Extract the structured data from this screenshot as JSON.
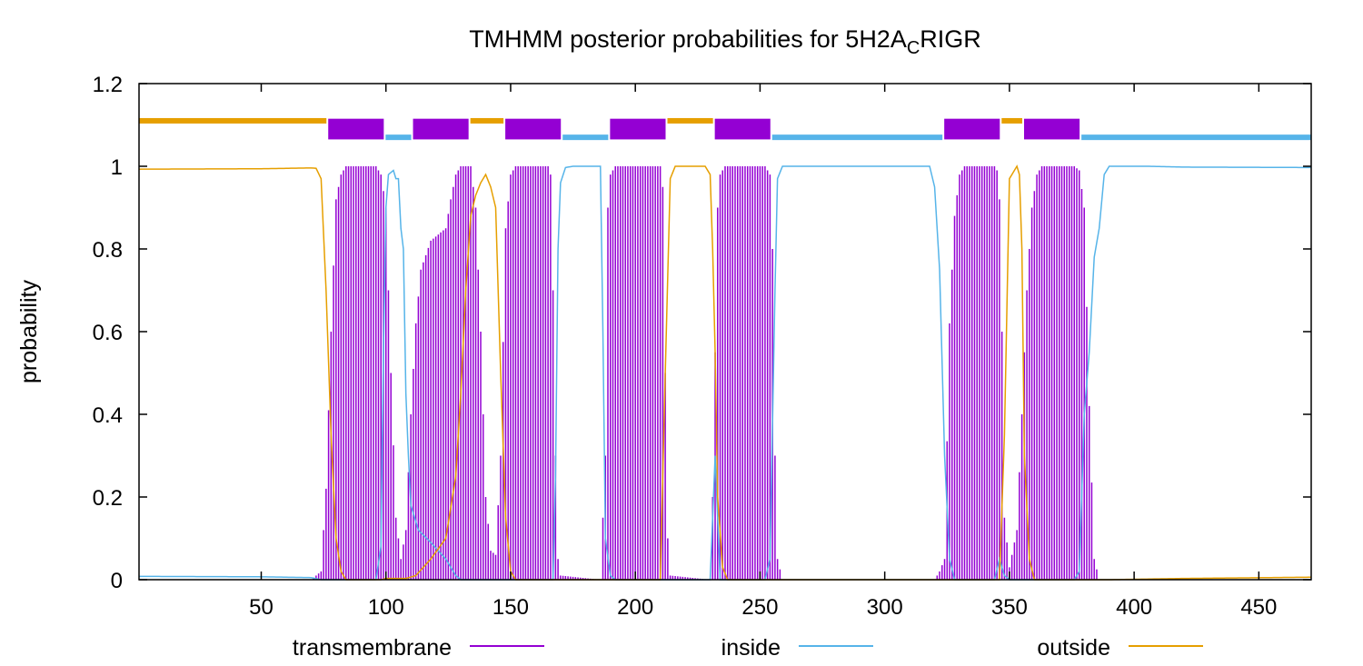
{
  "chart_data": {
    "type": "line",
    "title": {
      "main": "TMHMM posterior probabilities for 5H2A",
      "sub": "C",
      "tail": "RIGR"
    },
    "xlabel": "",
    "ylabel": "probability",
    "xlim": [
      1,
      471
    ],
    "ylim": [
      0,
      1.2
    ],
    "xticks": [
      50,
      100,
      150,
      200,
      250,
      300,
      350,
      400,
      450
    ],
    "yticks": [
      0,
      0.2,
      0.4,
      0.6,
      0.8,
      1,
      1.2
    ],
    "ytick_labels": [
      "0",
      "0.2",
      "0.4",
      "0.6",
      "0.8",
      "1",
      "1.2"
    ],
    "grid": false,
    "legend_position": "bottom",
    "colors": {
      "transmembrane": "#9400D3",
      "inside": "#56B4E9",
      "outside": "#E69F00"
    },
    "series": [
      {
        "name": "transmembrane",
        "style": "impulses",
        "points": [
          [
            1,
            0
          ],
          [
            70,
            0
          ],
          [
            74,
            0.02
          ],
          [
            76,
            0.22
          ],
          [
            78,
            0.6
          ],
          [
            80,
            0.92
          ],
          [
            82,
            0.98
          ],
          [
            84,
            1
          ],
          [
            96,
            1
          ],
          [
            98,
            0.98
          ],
          [
            100,
            0.9
          ],
          [
            102,
            0.5
          ],
          [
            104,
            0.15
          ],
          [
            106,
            0.05
          ],
          [
            108,
            0.12
          ],
          [
            110,
            0.4
          ],
          [
            112,
            0.62
          ],
          [
            114,
            0.75
          ],
          [
            118,
            0.82
          ],
          [
            124,
            0.85
          ],
          [
            126,
            0.92
          ],
          [
            128,
            0.98
          ],
          [
            130,
            1
          ],
          [
            134,
            1
          ],
          [
            136,
            0.9
          ],
          [
            138,
            0.6
          ],
          [
            140,
            0.2
          ],
          [
            142,
            0.07
          ],
          [
            144,
            0.06
          ],
          [
            146,
            0.3
          ],
          [
            148,
            0.85
          ],
          [
            150,
            0.98
          ],
          [
            152,
            1
          ],
          [
            165,
            1
          ],
          [
            166,
            0.98
          ],
          [
            167,
            0.7
          ],
          [
            168,
            0.3
          ],
          [
            169,
            0.05
          ],
          [
            170,
            0.01
          ],
          [
            186,
            0
          ],
          [
            188,
            0.3
          ],
          [
            189,
            0.9
          ],
          [
            190,
            0.98
          ],
          [
            192,
            1
          ],
          [
            210,
            1
          ],
          [
            211,
            0.95
          ],
          [
            212,
            0.5
          ],
          [
            213,
            0.1
          ],
          [
            214,
            0.01
          ],
          [
            230,
            0
          ],
          [
            231,
            0.2
          ],
          [
            232,
            0.55
          ],
          [
            233,
            0.9
          ],
          [
            234,
            0.98
          ],
          [
            236,
            1
          ],
          [
            252,
            1
          ],
          [
            254,
            0.98
          ],
          [
            255,
            0.8
          ],
          [
            256,
            0.3
          ],
          [
            257,
            0.05
          ],
          [
            259,
            0
          ],
          [
            320,
            0
          ],
          [
            322,
            0.02
          ],
          [
            324,
            0.05
          ],
          [
            326,
            0.62
          ],
          [
            328,
            0.88
          ],
          [
            330,
            0.98
          ],
          [
            332,
            1
          ],
          [
            344,
            1
          ],
          [
            345,
            0.99
          ],
          [
            346,
            0.92
          ],
          [
            347,
            0.6
          ],
          [
            348,
            0.15
          ],
          [
            350,
            0.03
          ],
          [
            353,
            0.12
          ],
          [
            355,
            0.4
          ],
          [
            357,
            0.7
          ],
          [
            359,
            0.9
          ],
          [
            361,
            0.98
          ],
          [
            363,
            1
          ],
          [
            376,
            1
          ],
          [
            378,
            0.99
          ],
          [
            380,
            0.9
          ],
          [
            382,
            0.42
          ],
          [
            384,
            0.05
          ],
          [
            386,
            0
          ],
          [
            471,
            0
          ]
        ]
      },
      {
        "name": "inside",
        "style": "line",
        "points": [
          [
            1,
            0.008
          ],
          [
            50,
            0.007
          ],
          [
            70,
            0.005
          ],
          [
            74,
            0
          ],
          [
            96,
            0
          ],
          [
            98,
            0.08
          ],
          [
            99,
            0.55
          ],
          [
            100,
            0.9
          ],
          [
            101,
            0.98
          ],
          [
            103,
            0.99
          ],
          [
            104,
            0.97
          ],
          [
            105,
            0.97
          ],
          [
            106,
            0.85
          ],
          [
            107,
            0.8
          ],
          [
            108,
            0.45
          ],
          [
            109,
            0.3
          ],
          [
            110,
            0.18
          ],
          [
            113,
            0.12
          ],
          [
            118,
            0.09
          ],
          [
            124,
            0.05
          ],
          [
            126,
            0.03
          ],
          [
            128,
            0.01
          ],
          [
            130,
            0
          ],
          [
            167,
            0
          ],
          [
            168,
            0.25
          ],
          [
            169,
            0.8
          ],
          [
            170,
            0.96
          ],
          [
            172,
            0.997
          ],
          [
            175,
            1
          ],
          [
            186,
            1
          ],
          [
            187,
            0.6
          ],
          [
            188,
            0.1
          ],
          [
            190,
            0.01
          ],
          [
            192,
            0
          ],
          [
            230,
            0
          ],
          [
            232,
            0.3
          ],
          [
            234,
            0
          ],
          [
            252,
            0
          ],
          [
            254,
            0.05
          ],
          [
            256,
            0.7
          ],
          [
            257,
            0.97
          ],
          [
            259,
            1
          ],
          [
            318,
            1
          ],
          [
            320,
            0.95
          ],
          [
            322,
            0.75
          ],
          [
            324,
            0.3
          ],
          [
            326,
            0.05
          ],
          [
            328,
            0
          ],
          [
            344,
            0
          ],
          [
            346,
            0.05
          ],
          [
            348,
            0.01
          ],
          [
            350,
            0
          ],
          [
            376,
            0
          ],
          [
            378,
            0.02
          ],
          [
            380,
            0.4
          ],
          [
            382,
            0.55
          ],
          [
            384,
            0.78
          ],
          [
            386,
            0.85
          ],
          [
            388,
            0.98
          ],
          [
            390,
            1
          ],
          [
            405,
            1
          ],
          [
            420,
            0.998
          ],
          [
            471,
            0.997
          ]
        ]
      },
      {
        "name": "outside",
        "style": "line",
        "points": [
          [
            1,
            0.993
          ],
          [
            50,
            0.994
          ],
          [
            70,
            0.996
          ],
          [
            72,
            0.995
          ],
          [
            74,
            0.97
          ],
          [
            76,
            0.7
          ],
          [
            78,
            0.35
          ],
          [
            80,
            0.1
          ],
          [
            82,
            0.02
          ],
          [
            84,
            0
          ],
          [
            96,
            0
          ],
          [
            98,
            0
          ],
          [
            100,
            0.003
          ],
          [
            108,
            0.003
          ],
          [
            112,
            0.01
          ],
          [
            118,
            0.05
          ],
          [
            124,
            0.1
          ],
          [
            128,
            0.25
          ],
          [
            130,
            0.45
          ],
          [
            132,
            0.7
          ],
          [
            134,
            0.88
          ],
          [
            136,
            0.93
          ],
          [
            138,
            0.96
          ],
          [
            140,
            0.98
          ],
          [
            142,
            0.95
          ],
          [
            144,
            0.9
          ],
          [
            146,
            0.5
          ],
          [
            148,
            0.15
          ],
          [
            150,
            0.02
          ],
          [
            152,
            0
          ],
          [
            210,
            0
          ],
          [
            212,
            0.5
          ],
          [
            214,
            0.97
          ],
          [
            216,
            1
          ],
          [
            228,
            1
          ],
          [
            230,
            0.98
          ],
          [
            231,
            0.8
          ],
          [
            232,
            0.55
          ],
          [
            233,
            0.2
          ],
          [
            235,
            0.03
          ],
          [
            237,
            0
          ],
          [
            346,
            0
          ],
          [
            348,
            0.35
          ],
          [
            350,
            0.97
          ],
          [
            353,
            1
          ],
          [
            354,
            0.98
          ],
          [
            355,
            0.8
          ],
          [
            356,
            0.3
          ],
          [
            358,
            0.05
          ],
          [
            360,
            0
          ],
          [
            390,
            0
          ],
          [
            420,
            0.003
          ],
          [
            471,
            0.006
          ]
        ]
      }
    ],
    "topology": [
      {
        "type": "outside",
        "start": 1,
        "end": 76
      },
      {
        "type": "transmembrane",
        "start": 77,
        "end": 99
      },
      {
        "type": "inside",
        "start": 100,
        "end": 110
      },
      {
        "type": "transmembrane",
        "start": 111,
        "end": 133
      },
      {
        "type": "outside",
        "start": 134,
        "end": 147
      },
      {
        "type": "transmembrane",
        "start": 148,
        "end": 170
      },
      {
        "type": "inside",
        "start": 171,
        "end": 189
      },
      {
        "type": "transmembrane",
        "start": 190,
        "end": 212
      },
      {
        "type": "outside",
        "start": 213,
        "end": 231
      },
      {
        "type": "transmembrane",
        "start": 232,
        "end": 254
      },
      {
        "type": "inside",
        "start": 255,
        "end": 323
      },
      {
        "type": "transmembrane",
        "start": 324,
        "end": 346
      },
      {
        "type": "outside",
        "start": 347,
        "end": 355
      },
      {
        "type": "transmembrane",
        "start": 356,
        "end": 378
      },
      {
        "type": "inside",
        "start": 379,
        "end": 471
      }
    ]
  }
}
